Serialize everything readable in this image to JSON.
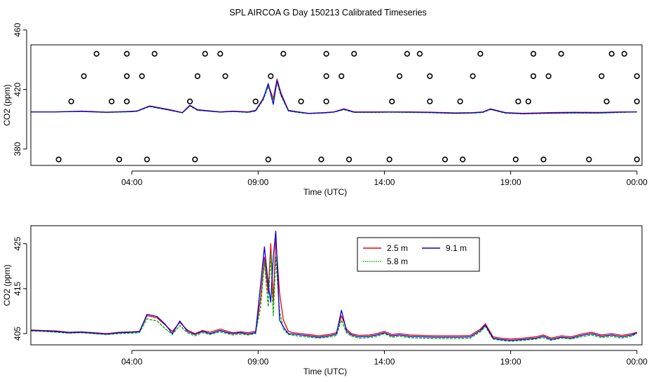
{
  "title": "SPL AIRCOA G  Day 150213  Calibrated Timeseries",
  "colors": {
    "series_a": "#ee0000",
    "series_b": "#00aa00",
    "series_c": "#0000dd",
    "axis": "#000000"
  },
  "chart_data": [
    {
      "type": "line",
      "panel": "top",
      "xlabel": "Time (UTC)",
      "ylabel": "CO2 (ppm)",
      "xlim": [
        0,
        24.2
      ],
      "ylim": [
        369,
        450
      ],
      "xticks": [
        {
          "value": 4,
          "label": "04:00"
        },
        {
          "value": 9,
          "label": "09:00"
        },
        {
          "value": 14,
          "label": "14:00"
        },
        {
          "value": 19,
          "label": "19:00"
        },
        {
          "value": 24,
          "label": "00:00"
        }
      ],
      "yticks": [
        {
          "value": 380,
          "label": "380"
        },
        {
          "value": 420,
          "label": "420"
        },
        {
          "value": 460,
          "label": "460"
        }
      ],
      "series": [
        {
          "name": "2.5 m",
          "color": "#ee0000",
          "x": [
            0,
            1,
            2,
            3,
            3.8,
            4.2,
            4.7,
            5.5,
            6,
            6.3,
            6.6,
            7.5,
            8,
            8.6,
            8.9,
            9.2,
            9.4,
            9.6,
            9.75,
            9.9,
            10.2,
            10.6,
            11,
            11.6,
            12,
            12.4,
            12.8,
            13.6,
            14.2,
            15,
            15.8,
            16.8,
            17.5,
            17.9,
            18.2,
            18.8,
            19.5,
            20.5,
            21.5,
            22.5,
            23.3,
            24
          ],
          "values": [
            405,
            405,
            405.5,
            404.8,
            405.2,
            405.6,
            409,
            406.5,
            404.5,
            409.5,
            406.5,
            405,
            405.5,
            405,
            406,
            414,
            423,
            414,
            427,
            418,
            406,
            405,
            404,
            404.5,
            405,
            407,
            405,
            405,
            405,
            405,
            404.8,
            404.3,
            404.5,
            405,
            407,
            404.5,
            404,
            404.5,
            404.7,
            404.6,
            405,
            405
          ]
        },
        {
          "name": "5.8 m",
          "color": "#00aa00",
          "x": [
            0,
            1,
            2,
            3,
            3.8,
            4.2,
            4.7,
            5.5,
            6,
            6.3,
            6.6,
            7.5,
            8,
            8.6,
            8.9,
            9.2,
            9.4,
            9.6,
            9.75,
            9.9,
            10.2,
            10.6,
            11,
            11.6,
            12,
            12.4,
            12.8,
            13.6,
            14.2,
            15,
            15.8,
            16.8,
            17.5,
            17.9,
            18.2,
            18.8,
            19.5,
            20.5,
            21.5,
            22.5,
            23.3,
            24
          ],
          "values": [
            405,
            405,
            405.2,
            404.7,
            405,
            405.3,
            408.5,
            406,
            404.3,
            409,
            406,
            404.8,
            405.2,
            404.6,
            405.5,
            413,
            422,
            413,
            425,
            416,
            405.5,
            404.5,
            403.8,
            404.2,
            404.8,
            406.5,
            404.6,
            404.6,
            404.8,
            404.6,
            404.4,
            403.9,
            404.1,
            404.6,
            406.6,
            404.1,
            403.6,
            404,
            404.2,
            404.1,
            404.6,
            405
          ]
        },
        {
          "name": "9.1 m",
          "color": "#0000dd",
          "x": [
            0,
            1,
            2,
            3,
            3.8,
            4.2,
            4.7,
            5.5,
            6,
            6.3,
            6.6,
            7.5,
            8,
            8.6,
            8.9,
            9.2,
            9.4,
            9.6,
            9.75,
            9.9,
            10.2,
            10.6,
            11,
            11.6,
            12,
            12.4,
            12.8,
            13.6,
            14.2,
            15,
            15.8,
            16.8,
            17.5,
            17.9,
            18.2,
            18.8,
            19.5,
            20.5,
            21.5,
            22.5,
            23.3,
            24
          ],
          "values": [
            405,
            405,
            405.3,
            404.7,
            405.1,
            405.4,
            408.8,
            406.2,
            404.4,
            409.2,
            406.2,
            404.9,
            405.3,
            404.8,
            405.8,
            413.5,
            424,
            410,
            426,
            417,
            405.8,
            404.8,
            403.9,
            404.3,
            404.9,
            406.8,
            404.8,
            404.8,
            404.9,
            404.8,
            404.6,
            404.1,
            404.3,
            404.8,
            406.8,
            404.3,
            403.8,
            404.2,
            404.4,
            404.3,
            404.8,
            405
          ]
        }
      ],
      "markers": {
        "style": "open-circle",
        "levels": [
          {
            "value": 373,
            "x": [
              1.1,
              3.5,
              4.6,
              6.5,
              9.4,
              11.5,
              12.6,
              14.2,
              16.4,
              17.1,
              19.2,
              20.3,
              22.1,
              24
            ]
          },
          {
            "value": 412,
            "x": [
              1.6,
              3.2,
              3.8,
              6.3,
              8.9,
              10.7,
              11.7,
              14.3,
              15.8,
              17,
              19.3,
              19.7,
              22.8,
              24
            ]
          },
          {
            "value": 429,
            "x": [
              2.1,
              3.8,
              4.4,
              6.6,
              7.7,
              9.5,
              11.7,
              12.3,
              14.6,
              15.8,
              17.5,
              19.9,
              20.5,
              22.6,
              24
            ]
          },
          {
            "value": 444,
            "x": [
              2.6,
              3.8,
              4.9,
              6.9,
              7.5,
              10,
              11.7,
              12.8,
              14.9,
              15.4,
              17.8,
              19.9,
              21,
              23,
              23.5
            ]
          }
        ]
      }
    },
    {
      "type": "line",
      "panel": "bottom",
      "xlabel": "Time (UTC)",
      "ylabel": "CO2 (ppm)",
      "xlim": [
        0,
        24.2
      ],
      "ylim": [
        402.5,
        429
      ],
      "xticks": [
        {
          "value": 4,
          "label": "04:00"
        },
        {
          "value": 9,
          "label": "09:00"
        },
        {
          "value": 14,
          "label": "14:00"
        },
        {
          "value": 19,
          "label": "19:00"
        },
        {
          "value": 24,
          "label": "00:00"
        }
      ],
      "yticks": [
        {
          "value": 405,
          "label": "405"
        },
        {
          "value": 415,
          "label": "415"
        },
        {
          "value": 425,
          "label": "425"
        }
      ],
      "legend": {
        "placement": "top-center",
        "entries": [
          {
            "label": "2.5 m",
            "color": "#ee0000",
            "dash": "solid"
          },
          {
            "label": "9.1 m",
            "color": "#0000dd",
            "dash": "solid"
          },
          {
            "label": "5.8 m",
            "color": "#00aa00",
            "dash": "dotted"
          }
        ]
      },
      "series": [
        {
          "name": "2.5 m",
          "color": "#ee0000",
          "x": [
            0,
            0.5,
            1,
            1.5,
            2,
            2.5,
            3,
            3.5,
            4,
            4.3,
            4.6,
            5,
            5.3,
            5.6,
            5.9,
            6.2,
            6.5,
            6.8,
            7.1,
            7.5,
            7.8,
            8,
            8.3,
            8.6,
            8.9,
            9.1,
            9.25,
            9.4,
            9.5,
            9.6,
            9.7,
            9.85,
            10,
            10.2,
            10.4,
            10.7,
            11,
            11.4,
            11.8,
            12.1,
            12.3,
            12.5,
            12.7,
            13,
            13.4,
            13.7,
            14,
            14.3,
            14.6,
            15,
            15.5,
            16,
            16.5,
            17,
            17.4,
            17.8,
            18,
            18.3,
            18.6,
            19,
            19.5,
            20,
            20.3,
            20.6,
            21,
            21.4,
            21.8,
            22.2,
            22.6,
            23,
            23.4,
            23.8,
            24
          ],
          "values": [
            405.8,
            405.7,
            405.6,
            405.3,
            405.4,
            405.2,
            405,
            405.3,
            405.4,
            405.5,
            409,
            408.5,
            407,
            405.5,
            407.5,
            405.8,
            405,
            405.7,
            405.3,
            406,
            405.5,
            405.2,
            405.4,
            405.2,
            405.5,
            413,
            422,
            414,
            425,
            412,
            426,
            414,
            408,
            405.5,
            405.2,
            405,
            404.8,
            404.5,
            404.8,
            405.2,
            409,
            406,
            405,
            404.6,
            404.7,
            405,
            405.5,
            404.8,
            405,
            404.7,
            404.6,
            404.5,
            404.5,
            404.5,
            404.6,
            406,
            407.2,
            404.3,
            404,
            403.8,
            404,
            404.3,
            404.7,
            404,
            404.5,
            404.3,
            404.9,
            405.3,
            404.7,
            405,
            404.6,
            405,
            405.3
          ]
        },
        {
          "name": "5.8 m",
          "color": "#00aa00",
          "x": [
            0,
            0.5,
            1,
            1.5,
            2,
            2.5,
            3,
            3.5,
            4,
            4.3,
            4.6,
            5,
            5.3,
            5.6,
            5.9,
            6.2,
            6.5,
            6.8,
            7.1,
            7.5,
            7.8,
            8,
            8.3,
            8.6,
            8.9,
            9.1,
            9.25,
            9.4,
            9.5,
            9.6,
            9.7,
            9.85,
            10,
            10.2,
            10.4,
            10.7,
            11,
            11.4,
            11.8,
            12.1,
            12.3,
            12.5,
            12.7,
            13,
            13.4,
            13.7,
            14,
            14.3,
            14.6,
            15,
            15.5,
            16,
            16.5,
            17,
            17.4,
            17.8,
            18,
            18.3,
            18.6,
            19,
            19.5,
            20,
            20.3,
            20.6,
            21,
            21.4,
            21.8,
            22.2,
            22.6,
            23,
            23.4,
            23.8,
            24
          ],
          "values": [
            405.6,
            405.5,
            405.3,
            405.1,
            405.2,
            405,
            404.8,
            405,
            405.1,
            405.2,
            408.3,
            407.8,
            406.2,
            404.8,
            406.8,
            405.2,
            404.5,
            405.2,
            404.8,
            405.4,
            405,
            404.7,
            404.9,
            404.7,
            405,
            411,
            421,
            411,
            423,
            409,
            422,
            410,
            406,
            404.8,
            404.6,
            404.4,
            404.2,
            404,
            404.2,
            404.6,
            408,
            405.2,
            404.4,
            404,
            404.1,
            404.4,
            405,
            404.2,
            404.4,
            404.1,
            404,
            403.9,
            403.9,
            403.9,
            404,
            405.4,
            406.6,
            403.8,
            403.5,
            403.3,
            403.5,
            403.8,
            404.1,
            403.5,
            404,
            403.8,
            404.3,
            404.7,
            404.1,
            404.4,
            404,
            404.4,
            405.1
          ]
        },
        {
          "name": "9.1 m",
          "color": "#0000dd",
          "x": [
            0,
            0.5,
            1,
            1.5,
            2,
            2.5,
            3,
            3.5,
            4,
            4.3,
            4.6,
            5,
            5.3,
            5.6,
            5.9,
            6.2,
            6.5,
            6.8,
            7.1,
            7.5,
            7.8,
            8,
            8.3,
            8.6,
            8.9,
            9.1,
            9.25,
            9.4,
            9.5,
            9.6,
            9.7,
            9.85,
            10,
            10.2,
            10.4,
            10.7,
            11,
            11.4,
            11.8,
            12.1,
            12.3,
            12.5,
            12.7,
            13,
            13.4,
            13.7,
            14,
            14.3,
            14.6,
            15,
            15.5,
            16,
            16.5,
            17,
            17.4,
            17.8,
            18,
            18.3,
            18.6,
            19,
            19.5,
            20,
            20.3,
            20.6,
            21,
            21.4,
            21.8,
            22.2,
            22.6,
            23,
            23.4,
            23.8,
            24
          ],
          "values": [
            405.7,
            405.6,
            405.5,
            405.2,
            405.3,
            405.1,
            404.9,
            405.2,
            405.3,
            405.4,
            409.3,
            408.8,
            407.2,
            405,
            407.8,
            405.5,
            404.8,
            405.5,
            405,
            405.7,
            405.2,
            405,
            405.2,
            404.9,
            405.2,
            416,
            424.3,
            416,
            412,
            422,
            427.8,
            408,
            406.5,
            405,
            404.9,
            404.7,
            404.5,
            404.2,
            404.5,
            404.9,
            410.2,
            405.6,
            404.7,
            404.3,
            404.4,
            404.7,
            405.2,
            404.5,
            404.7,
            404.4,
            404.3,
            404.2,
            404.2,
            404.2,
            404.3,
            405.7,
            406.9,
            404,
            403.7,
            403.5,
            403.7,
            404,
            404.4,
            403.7,
            404.2,
            404,
            404.6,
            405,
            404.4,
            404.7,
            404.3,
            404.7,
            405.2
          ]
        }
      ]
    }
  ]
}
